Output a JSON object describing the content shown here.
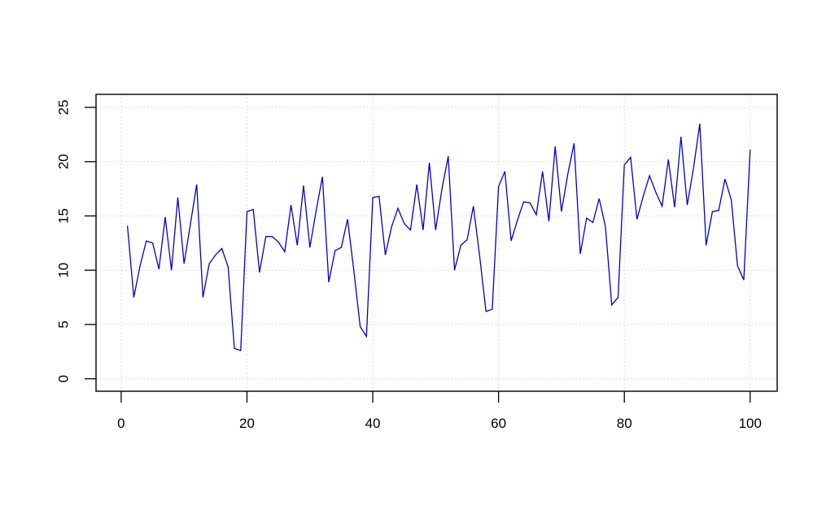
{
  "page": {
    "background": "#ffffff",
    "title": ""
  },
  "chart_data": {
    "type": "line",
    "title": "",
    "subtitle": "",
    "xlabel": "",
    "ylabel": "",
    "legend": "none",
    "grid": true,
    "grid_style": "dotted",
    "grid_color": "#d4d4d4",
    "frame_color": "#000000",
    "tick_color": "#000000",
    "tick_label_color": "#000000",
    "line_color": "#0000cc",
    "plot_background": "#ffffff",
    "x_ticks": [
      0,
      20,
      40,
      60,
      80,
      100
    ],
    "y_ticks": [
      0,
      5,
      10,
      15,
      20,
      25
    ],
    "xlim": [
      -4,
      104.3
    ],
    "ylim": [
      -1.15,
      26.2
    ],
    "x_start": 1,
    "x_step": 1,
    "values": [
      14.1,
      7.5,
      10.4,
      12.7,
      12.5,
      10.1,
      14.9,
      10.0,
      16.7,
      10.6,
      14.2,
      17.9,
      7.5,
      10.6,
      11.4,
      12.0,
      10.3,
      2.8,
      2.6,
      15.4,
      15.6,
      9.8,
      13.1,
      13.1,
      12.6,
      11.7,
      16.0,
      12.3,
      17.8,
      12.1,
      15.5,
      18.6,
      8.9,
      11.8,
      12.1,
      14.7,
      9.9,
      4.8,
      3.9,
      16.7,
      16.8,
      11.4,
      14.0,
      15.7,
      14.3,
      13.7,
      17.9,
      13.7,
      19.9,
      13.7,
      17.5,
      20.5,
      10.0,
      12.3,
      12.8,
      15.9,
      11.3,
      6.2,
      6.4,
      17.7,
      19.1,
      12.7,
      14.6,
      16.3,
      16.2,
      15.1,
      19.1,
      14.5,
      21.4,
      15.4,
      18.8,
      21.7,
      11.5,
      14.8,
      14.4,
      16.6,
      14.0,
      6.8,
      7.5,
      19.7,
      20.4,
      14.7,
      16.8,
      18.7,
      17.2,
      15.9,
      20.2,
      15.8,
      22.3,
      16.0,
      19.4,
      23.5,
      12.3,
      15.4,
      15.5,
      18.4,
      16.5,
      10.4,
      9.1,
      21.1
    ]
  }
}
